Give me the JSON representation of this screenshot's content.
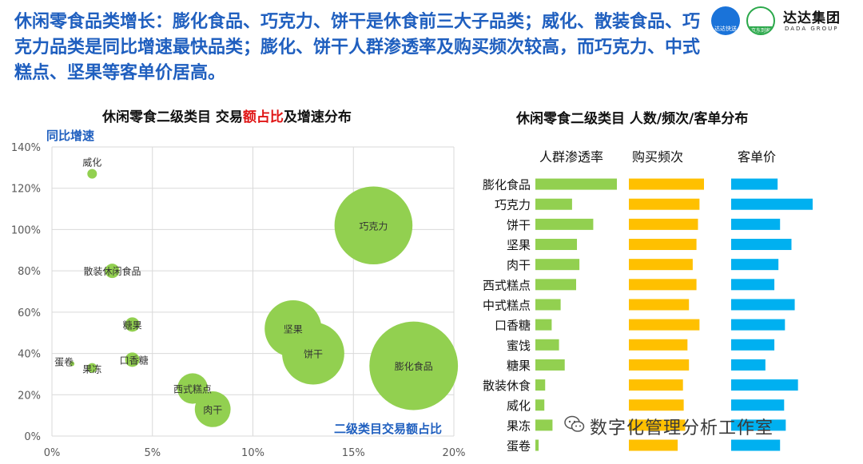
{
  "headline": "休闲零食品类增长：膨化食品、巧克力、饼干是休食前三大子品类；威化、散装食品、巧克力品类是同比增速最快品类；膨化、饼干人群渗透率及购买频次较高，而巧克力、中式糕点、坚果等客单价居高。",
  "logos": {
    "dada_label": "达达快送",
    "jd_label": "京东到家",
    "group_name": "达达集团",
    "group_sub": "DADA GROUP"
  },
  "left_title": {
    "pre": "休闲零食二级类目 交易",
    "highlight": "额占比",
    "post": "及增速分布"
  },
  "right_title": "休闲零食二级类目 人数/频次/客单分布",
  "watermark": "数字化管理分析工作室",
  "chart_data": [
    {
      "type": "scatter",
      "ylabel": "同比增速",
      "xlabel": "二级类目交易额占比",
      "xlim": [
        0,
        20
      ],
      "ylim": [
        0,
        140
      ],
      "xticks": [
        "0%",
        "5%",
        "10%",
        "15%",
        "20%"
      ],
      "yticks": [
        "0%",
        "20%",
        "40%",
        "60%",
        "80%",
        "100%",
        "120%",
        "140%"
      ],
      "grid": true,
      "bubble_color": "#92d050",
      "points": [
        {
          "label": "威化",
          "x": 2.0,
          "y": 127
        },
        {
          "label": "巧克力",
          "x": 16.0,
          "y": 102
        },
        {
          "label": "散装休闲食品",
          "x": 3.0,
          "y": 80
        },
        {
          "label": "糖果",
          "x": 4.0,
          "y": 54
        },
        {
          "label": "坚果",
          "x": 12.0,
          "y": 52
        },
        {
          "label": "饼干",
          "x": 13.0,
          "y": 40
        },
        {
          "label": "口香糖",
          "x": 4.0,
          "y": 37
        },
        {
          "label": "蛋卷",
          "x": 1.0,
          "y": 35
        },
        {
          "label": "果冻",
          "x": 2.0,
          "y": 33
        },
        {
          "label": "膨化食品",
          "x": 18.0,
          "y": 34
        },
        {
          "label": "西式糕点",
          "x": 7.0,
          "y": 23
        },
        {
          "label": "肉干",
          "x": 8.0,
          "y": 13
        }
      ]
    },
    {
      "type": "bar",
      "orientation": "horizontal",
      "categories": [
        "膨化食品",
        "巧克力",
        "饼干",
        "坚果",
        "肉干",
        "西式糕点",
        "中式糕点",
        "口香糖",
        "蜜饯",
        "糖果",
        "散装休食",
        "威化",
        "果冻",
        "蛋卷"
      ],
      "series": [
        {
          "name": "人群渗透率",
          "color": "#92d050",
          "values": [
            100,
            45,
            71,
            51,
            54,
            50,
            31,
            20,
            29,
            36,
            12,
            11,
            21,
            4
          ]
        },
        {
          "name": "购买频次",
          "color": "#ffc000",
          "values": [
            100,
            94,
            92,
            90,
            85,
            90,
            80,
            94,
            78,
            80,
            72,
            73,
            75,
            65
          ]
        },
        {
          "name": "客单价",
          "color": "#00b0f0",
          "values": [
            57,
            100,
            60,
            74,
            58,
            53,
            78,
            66,
            53,
            42,
            82,
            65,
            67,
            60
          ]
        }
      ]
    }
  ]
}
